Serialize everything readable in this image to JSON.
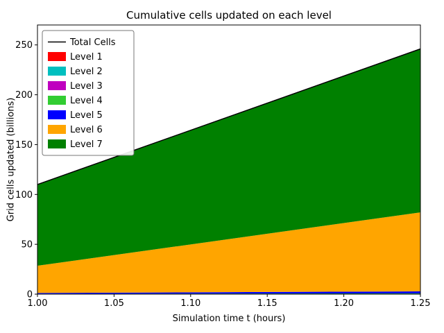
{
  "chart_data": {
    "type": "area",
    "stacked": true,
    "title": "Cumulative cells updated on each level",
    "xlabel": "Simulation time t (hours)",
    "ylabel": "Grid cells updated (billions)",
    "xlim": [
      1.0,
      1.25
    ],
    "ylim": [
      0,
      270
    ],
    "grid": false,
    "x": [
      1.0,
      1.25
    ],
    "xticks": [
      1.0,
      1.05,
      1.1,
      1.15,
      1.2,
      1.25
    ],
    "xtick_labels": [
      "1.00",
      "1.05",
      "1.10",
      "1.15",
      "1.20",
      "1.25"
    ],
    "yticks": [
      0,
      50,
      100,
      150,
      200,
      250
    ],
    "ytick_labels": [
      "0",
      "50",
      "100",
      "150",
      "200",
      "250"
    ],
    "series": [
      {
        "name": "Level 1",
        "color": "#ff0000",
        "values": [
          0.02,
          0.04
        ]
      },
      {
        "name": "Level 2",
        "color": "#00bfbf",
        "values": [
          0.05,
          0.1
        ]
      },
      {
        "name": "Level 3",
        "color": "#bf00bf",
        "values": [
          0.1,
          0.2
        ]
      },
      {
        "name": "Level 4",
        "color": "#32cd32",
        "values": [
          0.23,
          0.46
        ]
      },
      {
        "name": "Level 5",
        "color": "#0000ff",
        "values": [
          0.8,
          2.0
        ]
      },
      {
        "name": "Level 6",
        "color": "#ffa500",
        "values": [
          27.3,
          79.2
        ]
      },
      {
        "name": "Level 7",
        "color": "#008000",
        "values": [
          81.5,
          164.0
        ]
      }
    ],
    "total_line": {
      "name": "Total Cells",
      "color": "#000000",
      "totals": [
        110.0,
        246.0
      ]
    },
    "legend": {
      "position": "upper left",
      "entries": [
        "Total Cells",
        "Level 1",
        "Level 2",
        "Level 3",
        "Level 4",
        "Level 5",
        "Level 6",
        "Level 7"
      ]
    },
    "axis_color": "#000000",
    "background_color": "#ffffff"
  }
}
